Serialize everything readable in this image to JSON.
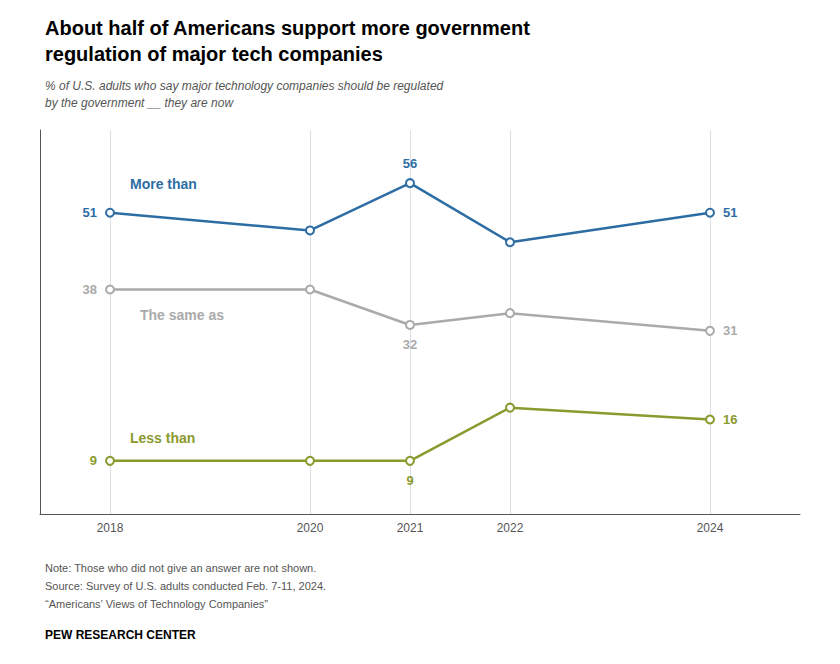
{
  "chart_data": {
    "type": "line",
    "title": "About half of Americans support more government\nregulation of major tech companies",
    "subtitle": "% of U.S. adults who say major technology companies should be regulated\nby the government __ they are now",
    "x": [
      2018,
      2020,
      2021,
      2022,
      2024
    ],
    "series": [
      {
        "name": "More than",
        "color": "#2e6da4",
        "values": [
          51,
          48,
          56,
          46,
          51
        ],
        "value_labels": [
          "51",
          null,
          "56",
          null,
          "51"
        ]
      },
      {
        "name": "The same as",
        "color": "#aaaaaa",
        "values": [
          38,
          38,
          32,
          34,
          31
        ],
        "value_labels": [
          "38",
          null,
          "32",
          null,
          "31"
        ]
      },
      {
        "name": "Less than",
        "color": "#8b9a2e",
        "values": [
          9,
          9,
          9,
          18,
          16
        ],
        "value_labels": [
          "9",
          null,
          "9",
          null,
          "16"
        ]
      }
    ],
    "xlim": [
      2017.3,
      2024.9
    ],
    "xticks": [
      2018,
      2020,
      2021,
      2022,
      2024
    ],
    "ylim": [
      0,
      65
    ],
    "tick_labels": "x",
    "grid": true,
    "marker": "circle",
    "notes": [
      "Note: Those who did not give an answer are not shown.",
      "Source: Survey of U.S. adults conducted Feb. 7-11, 2024.",
      "“Americans’ Views of Technology Companies”"
    ],
    "footer": "PEW RESEARCH CENTER"
  }
}
